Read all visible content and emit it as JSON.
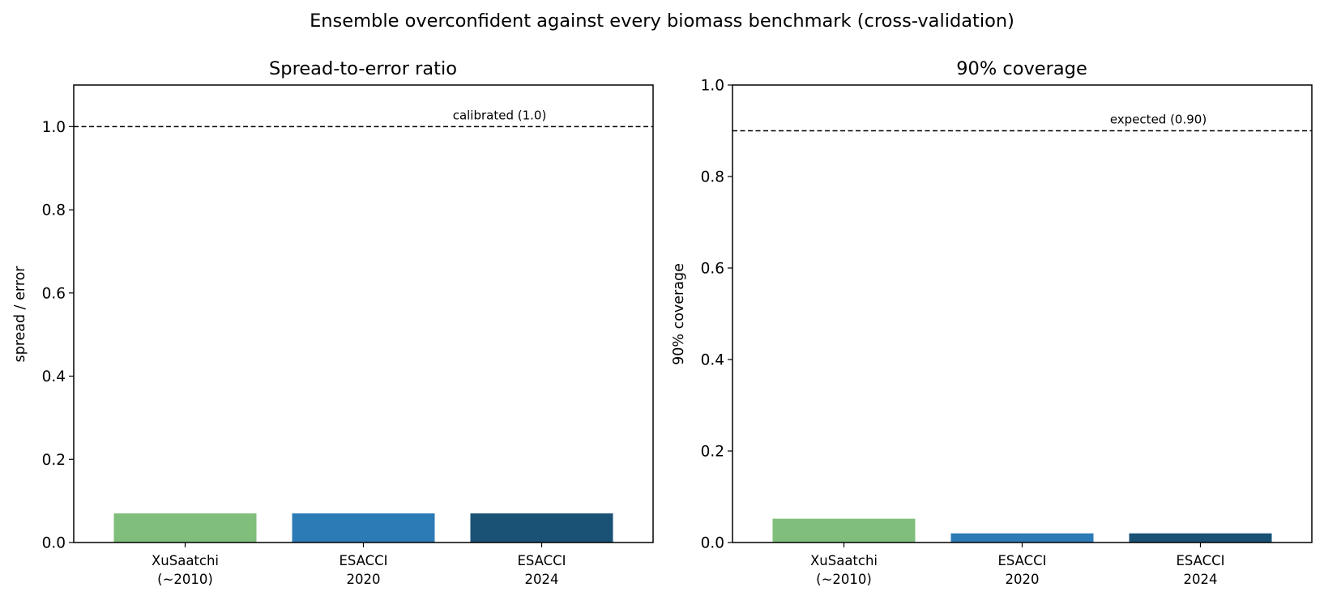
{
  "title": "Ensemble overconfident against every biomass benchmark (cross-validation)",
  "chart_data": [
    {
      "type": "bar",
      "title": "Spread-to-error ratio",
      "xlabel": "",
      "ylabel": "spread / error",
      "categories": [
        {
          "line1": "XuSaatchi",
          "line2": "(~2010)"
        },
        {
          "line1": "ESACCI",
          "line2": "2020"
        },
        {
          "line1": "ESACCI",
          "line2": "2024"
        }
      ],
      "values": [
        0.07,
        0.07,
        0.07
      ],
      "colors": [
        "#7fbf7b",
        "#2c7bb6",
        "#1a5276"
      ],
      "ylim": [
        0,
        1.1
      ],
      "yticks": [
        0.0,
        0.2,
        0.4,
        0.6,
        0.8,
        1.0
      ],
      "reference_line": {
        "value": 1.0,
        "label": "calibrated (1.0)",
        "style": "dashed"
      },
      "grid": false
    },
    {
      "type": "bar",
      "title": "90% coverage",
      "xlabel": "",
      "ylabel": "90% coverage",
      "categories": [
        {
          "line1": "XuSaatchi",
          "line2": "(~2010)"
        },
        {
          "line1": "ESACCI",
          "line2": "2020"
        },
        {
          "line1": "ESACCI",
          "line2": "2024"
        }
      ],
      "values": [
        0.052,
        0.02,
        0.02
      ],
      "colors": [
        "#7fbf7b",
        "#2c7bb6",
        "#1a5276"
      ],
      "ylim": [
        0,
        1.0
      ],
      "yticks": [
        0.0,
        0.2,
        0.4,
        0.6,
        0.8,
        1.0
      ],
      "reference_line": {
        "value": 0.9,
        "label": "expected (0.90)",
        "style": "dashed"
      },
      "grid": false
    }
  ]
}
